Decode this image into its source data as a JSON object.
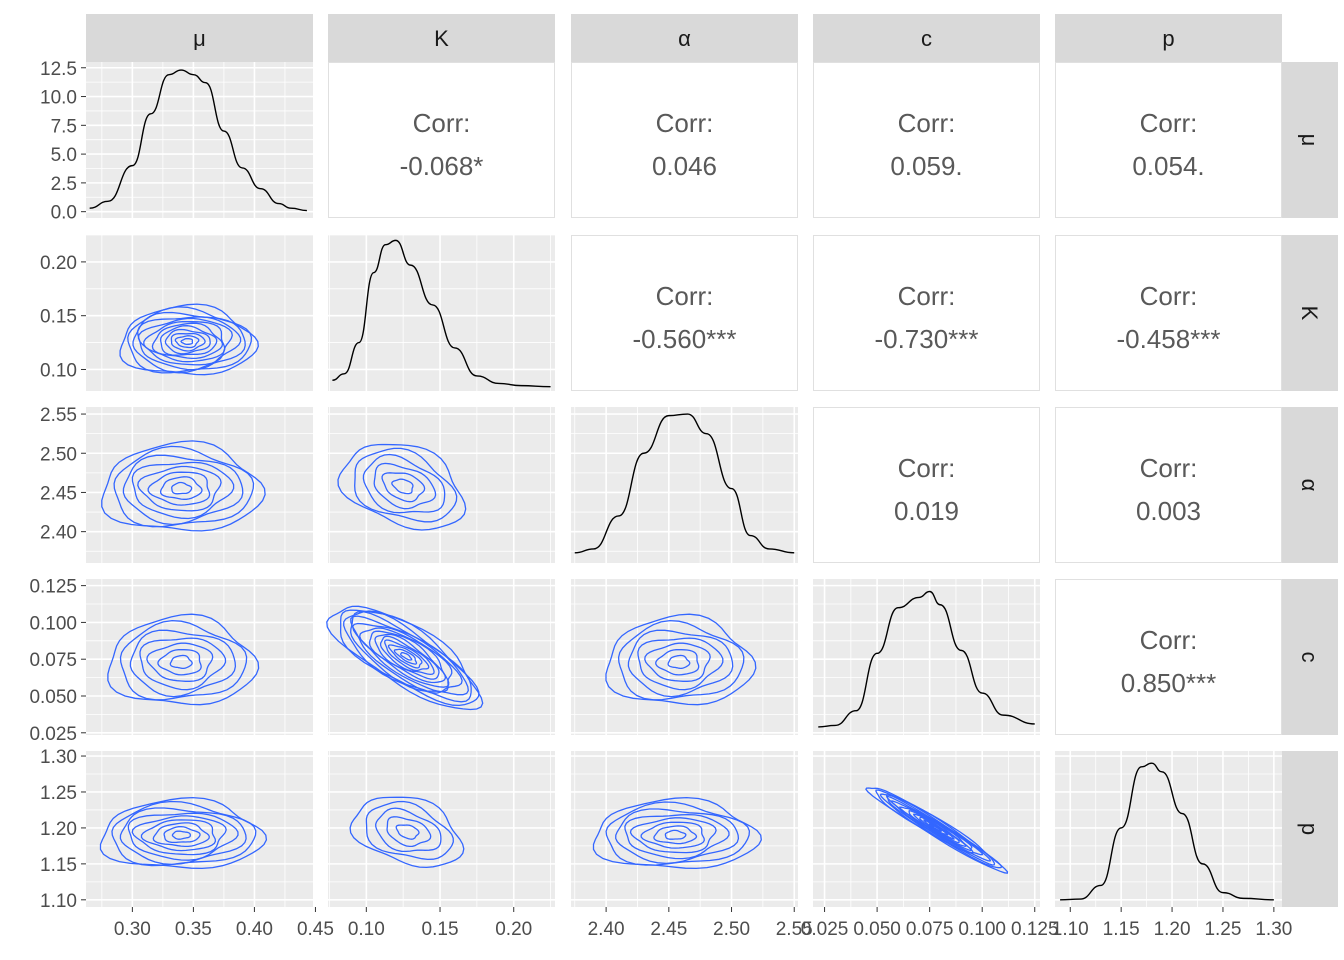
{
  "chart_data": {
    "type": "pairs",
    "variables": [
      "μ",
      "K",
      "α",
      "c",
      "p"
    ],
    "x_ticks": [
      [
        "0.30",
        "0.35",
        "0.40",
        "0.45"
      ],
      [
        "0.10",
        "0.15",
        "0.20"
      ],
      [
        "2.40",
        "2.45",
        "2.50",
        "2.55"
      ],
      [
        "0.025",
        "0.050",
        "0.075",
        "0.100",
        "0.125"
      ],
      [
        "1.10",
        "1.15",
        "1.20",
        "1.25",
        "1.30"
      ]
    ],
    "y_ticks": [
      [
        "0.0",
        "2.5",
        "5.0",
        "7.5",
        "10.0",
        "12.5"
      ],
      [
        "0.10",
        "0.15",
        "0.20"
      ],
      [
        "2.40",
        "2.45",
        "2.50",
        "2.55"
      ],
      [
        "0.025",
        "0.050",
        "0.075",
        "0.100",
        "0.125"
      ],
      [
        "1.10",
        "1.15",
        "1.20",
        "1.25",
        "1.30"
      ]
    ],
    "x_ranges": [
      [
        0.262,
        0.448
      ],
      [
        0.074,
        0.228
      ],
      [
        2.372,
        2.553
      ],
      [
        0.0195,
        0.1275
      ],
      [
        1.085,
        1.308
      ]
    ],
    "y_ranges": [
      [
        -0.55,
        13.0
      ],
      [
        0.08,
        0.225
      ],
      [
        2.36,
        2.559
      ],
      [
        0.0235,
        0.1295
      ],
      [
        1.09,
        1.307
      ]
    ],
    "correlations": [
      {
        "row": 0,
        "col": 1,
        "label": "Corr:",
        "value": "-0.068*"
      },
      {
        "row": 0,
        "col": 2,
        "label": "Corr:",
        "value": "0.046"
      },
      {
        "row": 0,
        "col": 3,
        "label": "Corr:",
        "value": "0.059."
      },
      {
        "row": 0,
        "col": 4,
        "label": "Corr:",
        "value": "0.054."
      },
      {
        "row": 1,
        "col": 2,
        "label": "Corr:",
        "value": "-0.560***"
      },
      {
        "row": 1,
        "col": 3,
        "label": "Corr:",
        "value": "-0.730***"
      },
      {
        "row": 1,
        "col": 4,
        "label": "Corr:",
        "value": "-0.458***"
      },
      {
        "row": 2,
        "col": 3,
        "label": "Corr:",
        "value": "0.019"
      },
      {
        "row": 2,
        "col": 4,
        "label": "Corr:",
        "value": "0.003"
      },
      {
        "row": 3,
        "col": 4,
        "label": "Corr:",
        "value": "0.850***"
      }
    ],
    "densities": [
      {
        "var": "μ",
        "x": [
          0.265,
          0.28,
          0.3,
          0.315,
          0.33,
          0.34,
          0.35,
          0.36,
          0.375,
          0.39,
          0.405,
          0.42,
          0.43,
          0.443
        ],
        "y": [
          0.3,
          0.9,
          4.0,
          8.5,
          11.9,
          12.3,
          11.9,
          11.2,
          7.0,
          3.8,
          2.0,
          0.7,
          0.3,
          0.1
        ]
      },
      {
        "var": "K",
        "x": [
          0.077,
          0.085,
          0.095,
          0.105,
          0.113,
          0.12,
          0.13,
          0.145,
          0.16,
          0.175,
          0.19,
          0.205,
          0.225
        ],
        "ymax": 0.221,
        "y": [
          0.09,
          0.096,
          0.125,
          0.19,
          0.216,
          0.22,
          0.197,
          0.16,
          0.12,
          0.094,
          0.087,
          0.085,
          0.084
        ]
      },
      {
        "var": "α",
        "x": [
          2.375,
          2.39,
          2.41,
          2.43,
          2.45,
          2.465,
          2.48,
          2.5,
          2.515,
          2.53,
          2.55
        ],
        "y": [
          2.373,
          2.378,
          2.42,
          2.5,
          2.548,
          2.55,
          2.525,
          2.455,
          2.395,
          2.378,
          2.373
        ]
      },
      {
        "var": "c",
        "x": [
          0.022,
          0.03,
          0.04,
          0.05,
          0.06,
          0.07,
          0.075,
          0.08,
          0.09,
          0.1,
          0.11,
          0.125
        ],
        "y": [
          0.029,
          0.03,
          0.04,
          0.079,
          0.11,
          0.117,
          0.121,
          0.112,
          0.081,
          0.052,
          0.037,
          0.031
        ]
      },
      {
        "var": "p",
        "x": [
          1.09,
          1.11,
          1.13,
          1.15,
          1.17,
          1.18,
          1.19,
          1.21,
          1.23,
          1.25,
          1.27,
          1.3
        ],
        "y": [
          1.1,
          1.101,
          1.12,
          1.2,
          1.285,
          1.29,
          1.278,
          1.22,
          1.15,
          1.11,
          1.102,
          1.1
        ]
      }
    ],
    "contours": [
      {
        "row": 1,
        "col": 0,
        "cx": 0.345,
        "cy": 0.126,
        "rx": 0.055,
        "ry": 0.032,
        "levels": 12,
        "color": "#3366FF"
      },
      {
        "row": 2,
        "col": 0,
        "cx": 0.34,
        "cy": 2.455,
        "rx": 0.065,
        "ry": 0.056,
        "levels": 8,
        "color": "#3366FF"
      },
      {
        "row": 2,
        "col": 1,
        "cx": 0.125,
        "cy": 2.458,
        "rx": 0.043,
        "ry": 0.05,
        "levels": 6,
        "rot": 0.35,
        "color": "#3366FF"
      },
      {
        "row": 3,
        "col": 0,
        "cx": 0.34,
        "cy": 0.073,
        "rx": 0.06,
        "ry": 0.03,
        "levels": 7,
        "color": "#3366FF"
      },
      {
        "row": 3,
        "col": 1,
        "cx": 0.127,
        "cy": 0.077,
        "rx": 0.058,
        "ry": 0.02,
        "levels": 14,
        "rot": 0.55,
        "color": "#3366FF"
      },
      {
        "row": 3,
        "col": 2,
        "cx": 2.458,
        "cy": 0.073,
        "rx": 0.058,
        "ry": 0.03,
        "levels": 7,
        "color": "#3366FF"
      },
      {
        "row": 4,
        "col": 0,
        "cx": 0.34,
        "cy": 1.19,
        "rx": 0.066,
        "ry": 0.048,
        "levels": 9,
        "color": "#3366FF"
      },
      {
        "row": 4,
        "col": 1,
        "cx": 0.128,
        "cy": 1.195,
        "rx": 0.038,
        "ry": 0.045,
        "levels": 5,
        "rot": 0.3,
        "color": "#3366FF"
      },
      {
        "row": 4,
        "col": 2,
        "cx": 2.455,
        "cy": 1.19,
        "rx": 0.065,
        "ry": 0.048,
        "levels": 8,
        "color": "#3366FF"
      },
      {
        "row": 4,
        "col": 3,
        "cx": 0.078,
        "cy": 1.2,
        "rx": 0.038,
        "ry": 0.012,
        "levels": 12,
        "rot": 0.55,
        "color": "#3366FF"
      }
    ]
  }
}
